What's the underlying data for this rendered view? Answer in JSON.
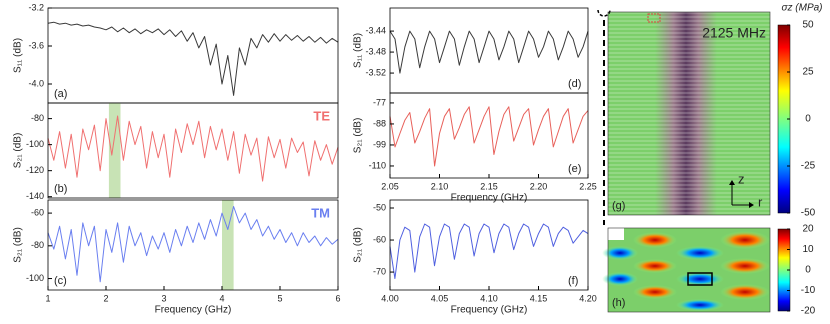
{
  "chart_data": [
    {
      "type": "line",
      "panel_label": "(a)",
      "y_label": "S₁₁ (dB)",
      "color": "#3a3a3a",
      "xlim": [
        1,
        6
      ],
      "ylim": [
        -4.2,
        -3.2
      ],
      "yticks": [
        -3.2,
        -3.6,
        {
          "value": -4,
          "label": "-4.0"
        }
      ],
      "x": [
        1,
        1.1,
        1.2,
        1.3,
        1.4,
        1.5,
        1.6,
        1.7,
        1.8,
        1.9,
        2,
        2.1,
        2.2,
        2.3,
        2.4,
        2.5,
        2.6,
        2.7,
        2.8,
        2.9,
        3,
        3.1,
        3.2,
        3.3,
        3.4,
        3.5,
        3.6,
        3.7,
        3.8,
        3.9,
        4,
        4.1,
        4.2,
        4.3,
        4.4,
        4.5,
        4.6,
        4.7,
        4.8,
        4.9,
        5,
        5.1,
        5.2,
        5.3,
        5.4,
        5.5,
        5.6,
        5.7,
        5.8,
        5.9,
        6
      ],
      "values": [
        -3.36,
        -3.35,
        -3.37,
        -3.36,
        -3.38,
        -3.37,
        -3.39,
        -3.38,
        -3.4,
        -3.41,
        -3.43,
        -3.4,
        -3.45,
        -3.41,
        -3.46,
        -3.42,
        -3.47,
        -3.43,
        -3.46,
        -3.42,
        -3.48,
        -3.43,
        -3.5,
        -3.44,
        -3.55,
        -3.46,
        -3.62,
        -3.5,
        -3.8,
        -3.58,
        -4,
        -3.7,
        -4.12,
        -3.62,
        -3.8,
        -3.52,
        -3.62,
        -3.48,
        -3.56,
        -3.47,
        -3.55,
        -3.48,
        -3.54,
        -3.49,
        -3.55,
        -3.5,
        -3.56,
        -3.51,
        -3.57,
        -3.52,
        -3.56
      ]
    },
    {
      "type": "line",
      "panel_label": "(b)",
      "y_label": "S₂₁ (dB)",
      "annotation": "TE",
      "color": "#f07070",
      "xlim": [
        1,
        6
      ],
      "ylim": [
        -141,
        -68
      ],
      "yticks": [
        -80,
        -100,
        -120,
        -140
      ],
      "highlight": [
        2.05,
        2.25
      ],
      "x": [
        1,
        1.1,
        1.2,
        1.3,
        1.4,
        1.5,
        1.6,
        1.7,
        1.8,
        1.9,
        2,
        2.1,
        2.2,
        2.3,
        2.4,
        2.5,
        2.6,
        2.7,
        2.8,
        2.9,
        3,
        3.1,
        3.2,
        3.3,
        3.4,
        3.5,
        3.6,
        3.7,
        3.8,
        3.9,
        4,
        4.1,
        4.2,
        4.3,
        4.4,
        4.5,
        4.6,
        4.7,
        4.8,
        4.9,
        5,
        5.1,
        5.2,
        5.3,
        5.4,
        5.5,
        5.6,
        5.7,
        5.8,
        5.9,
        6
      ],
      "values": [
        -95,
        -112,
        -90,
        -118,
        -92,
        -125,
        -88,
        -104,
        -85,
        -120,
        -80,
        -108,
        -78,
        -112,
        -82,
        -100,
        -86,
        -118,
        -90,
        -110,
        -92,
        -125,
        -88,
        -106,
        -84,
        -100,
        -82,
        -110,
        -86,
        -104,
        -88,
        -112,
        -90,
        -122,
        -92,
        -108,
        -95,
        -128,
        -94,
        -110,
        -96,
        -118,
        -95,
        -106,
        -98,
        -124,
        -97,
        -112,
        -100,
        -115,
        -102
      ]
    },
    {
      "type": "line",
      "panel_label": "(c)",
      "y_label": "S₂₁ (dB)",
      "annotation": "TM",
      "color": "#6a7ff0",
      "xlim": [
        1,
        6
      ],
      "ylim": [
        -107,
        -52
      ],
      "yticks": [
        -60,
        -80,
        -100
      ],
      "highlight": [
        4.0,
        4.2
      ],
      "xticks": [
        1,
        2,
        3,
        4,
        5,
        6
      ],
      "x_label": "Frequency (GHz)",
      "x": [
        1,
        1.1,
        1.2,
        1.3,
        1.4,
        1.5,
        1.6,
        1.7,
        1.8,
        1.9,
        2,
        2.1,
        2.2,
        2.3,
        2.4,
        2.5,
        2.6,
        2.7,
        2.8,
        2.9,
        3,
        3.1,
        3.2,
        3.3,
        3.4,
        3.5,
        3.6,
        3.7,
        3.8,
        3.9,
        4,
        4.1,
        4.2,
        4.3,
        4.4,
        4.5,
        4.6,
        4.7,
        4.8,
        4.9,
        5,
        5.1,
        5.2,
        5.3,
        5.4,
        5.5,
        5.6,
        5.7,
        5.8,
        5.9,
        6
      ],
      "values": [
        -72,
        -82,
        -68,
        -88,
        -70,
        -98,
        -66,
        -80,
        -68,
        -102,
        -70,
        -84,
        -66,
        -90,
        -68,
        -80,
        -72,
        -86,
        -74,
        -82,
        -72,
        -84,
        -70,
        -80,
        -68,
        -78,
        -66,
        -76,
        -64,
        -74,
        -60,
        -70,
        -56,
        -66,
        -60,
        -70,
        -64,
        -74,
        -68,
        -76,
        -70,
        -78,
        -72,
        -80,
        -72,
        -78,
        -74,
        -80,
        -75,
        -79,
        -76
      ]
    },
    {
      "type": "line",
      "panel_label": "(d)",
      "y_label": "S₁₁ (dB)",
      "color": "#3a3a3a",
      "xlim": [
        2.05,
        2.25
      ],
      "ylim": [
        -3.558,
        -3.396
      ],
      "yticks": [
        -3.44,
        -3.48,
        -3.52
      ],
      "x": [
        2.05,
        2.055,
        2.06,
        2.065,
        2.07,
        2.075,
        2.08,
        2.085,
        2.09,
        2.095,
        2.1,
        2.105,
        2.11,
        2.115,
        2.12,
        2.125,
        2.13,
        2.135,
        2.14,
        2.145,
        2.15,
        2.155,
        2.16,
        2.165,
        2.17,
        2.175,
        2.18,
        2.185,
        2.19,
        2.195,
        2.2,
        2.205,
        2.21,
        2.215,
        2.22,
        2.225,
        2.23,
        2.235,
        2.24,
        2.245,
        2.25
      ],
      "values": [
        -3.44,
        -3.455,
        -3.52,
        -3.47,
        -3.44,
        -3.455,
        -3.51,
        -3.47,
        -3.44,
        -3.455,
        -3.5,
        -3.47,
        -3.44,
        -3.455,
        -3.505,
        -3.47,
        -3.44,
        -3.455,
        -3.5,
        -3.47,
        -3.44,
        -3.455,
        -3.495,
        -3.47,
        -3.44,
        -3.455,
        -3.5,
        -3.47,
        -3.44,
        -3.455,
        -3.49,
        -3.47,
        -3.44,
        -3.455,
        -3.495,
        -3.47,
        -3.44,
        -3.455,
        -3.49,
        -3.47,
        -3.44
      ]
    },
    {
      "type": "line",
      "panel_label": "(e)",
      "y_label": "S₂₁ (dB)",
      "color": "#e8605a",
      "xlim": [
        2.05,
        2.25
      ],
      "ylim": [
        -116.3,
        -71.8
      ],
      "yticks": [
        -77,
        -88,
        -99,
        -110
      ],
      "xticks": [
        {
          "value": 2.05,
          "label": "2.05"
        },
        {
          "value": 2.1,
          "label": "2.10"
        },
        {
          "value": 2.15,
          "label": "2.15"
        },
        {
          "value": 2.2,
          "label": "2.20"
        },
        {
          "value": 2.25,
          "label": "2.25"
        }
      ],
      "x_label": "Frequency (GHz)",
      "x": [
        2.05,
        2.055,
        2.06,
        2.065,
        2.07,
        2.075,
        2.08,
        2.085,
        2.09,
        2.095,
        2.1,
        2.105,
        2.11,
        2.115,
        2.12,
        2.125,
        2.13,
        2.135,
        2.14,
        2.145,
        2.15,
        2.155,
        2.16,
        2.165,
        2.17,
        2.175,
        2.18,
        2.185,
        2.19,
        2.195,
        2.2,
        2.205,
        2.21,
        2.215,
        2.22,
        2.225,
        2.23,
        2.235,
        2.24,
        2.245,
        2.25
      ],
      "values": [
        -84,
        -100,
        -93,
        -86,
        -82,
        -98,
        -92,
        -85,
        -80,
        -110,
        -93,
        -84,
        -80,
        -96,
        -90,
        -83,
        -79,
        -98,
        -91,
        -84,
        -79,
        -104,
        -92,
        -83,
        -79,
        -97,
        -90,
        -83,
        -80,
        -99,
        -91,
        -84,
        -80,
        -100,
        -92,
        -84,
        -80,
        -98,
        -91,
        -84,
        -81
      ]
    },
    {
      "type": "line",
      "panel_label": "(f)",
      "y_label": "S₂₁ (dB)",
      "color": "#5060e0",
      "xlim": [
        4.0,
        4.2
      ],
      "ylim": [
        -75.6,
        -47.5
      ],
      "yticks": [
        -50,
        -60,
        -70
      ],
      "xticks": [
        {
          "value": 4,
          "label": "4.00"
        },
        {
          "value": 4.05,
          "label": "4.05"
        },
        {
          "value": 4.1,
          "label": "4.10"
        },
        {
          "value": 4.15,
          "label": "4.15"
        },
        {
          "value": 4.2,
          "label": "4.20"
        }
      ],
      "x_label": "Frequency (GHz)",
      "x": [
        4,
        4.005,
        4.01,
        4.015,
        4.02,
        4.025,
        4.03,
        4.035,
        4.04,
        4.045,
        4.05,
        4.055,
        4.06,
        4.065,
        4.07,
        4.075,
        4.08,
        4.085,
        4.09,
        4.095,
        4.1,
        4.105,
        4.11,
        4.115,
        4.12,
        4.125,
        4.13,
        4.135,
        4.14,
        4.145,
        4.15,
        4.155,
        4.16,
        4.165,
        4.17,
        4.175,
        4.18,
        4.185,
        4.19,
        4.195,
        4.2
      ],
      "values": [
        -62,
        -72,
        -60,
        -56,
        -57,
        -70,
        -59,
        -55,
        -56,
        -68,
        -59,
        -55,
        -56,
        -66,
        -58,
        -55,
        -56,
        -65,
        -58,
        -55,
        -56,
        -64,
        -58,
        -55,
        -56,
        -63,
        -58,
        -55,
        -56,
        -62,
        -58,
        -55,
        -56,
        -62,
        -58,
        -56,
        -57,
        -61,
        -59,
        -57,
        -58
      ]
    },
    {
      "type": "heatmap",
      "panel_label": "(g)",
      "annotation": "2125 MHz",
      "colorbar_label": "σz (MPa)",
      "clim": [
        -50,
        50
      ],
      "cticks": [
        50,
        25,
        0,
        -25,
        -50
      ],
      "axis_labels": [
        "z",
        "r"
      ]
    },
    {
      "type": "heatmap",
      "panel_label": "(h)",
      "clim": [
        -20,
        20
      ],
      "cticks": [
        20,
        10,
        0,
        -10,
        -20
      ]
    }
  ]
}
